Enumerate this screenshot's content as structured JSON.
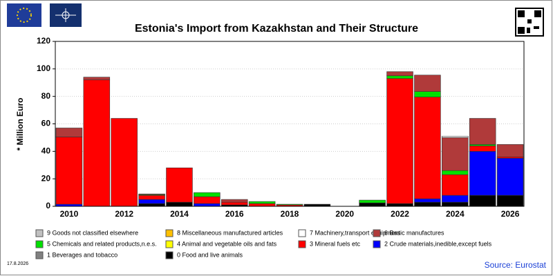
{
  "chart_data": {
    "type": "bar",
    "stacked": true,
    "title": "Estonia's Import from Kazakhstan and Their Structure",
    "y_label": "* Million Euro",
    "date": "17.8.2026",
    "source": "Source: Eurostat",
    "categories": [
      "2010",
      null,
      "2012",
      null,
      "2014",
      null,
      "2016",
      null,
      "2018",
      null,
      "2020",
      null,
      "2022",
      null,
      "2024",
      null,
      "2026"
    ],
    "ylim": [
      0,
      120
    ],
    "yticks": [
      0,
      20,
      40,
      60,
      80,
      100,
      120
    ],
    "grid": true,
    "series": [
      {
        "name": "9 Goods not classified elsewhere",
        "color": "#c0c0c0",
        "values": [
          0,
          0,
          0,
          0,
          0,
          0,
          0,
          0,
          0,
          0,
          0,
          0,
          0,
          0,
          0,
          0,
          0
        ]
      },
      {
        "name": "8 Miscellaneous manufactured articles",
        "color": "#ffc000",
        "values": [
          0,
          0,
          0,
          0,
          0,
          0,
          0,
          0,
          0,
          0,
          0,
          0,
          0,
          0,
          0,
          0,
          0
        ]
      },
      {
        "name": "7 Machinery,transport equipment",
        "color": "#ffffff",
        "values": [
          0,
          0,
          0,
          0,
          0,
          0,
          0,
          0,
          0,
          0,
          0,
          0,
          0,
          0,
          1,
          0,
          0
        ]
      },
      {
        "name": "6 Basic manufactures",
        "color": "#b03a3a",
        "values": [
          6.5,
          2,
          0,
          0.5,
          0,
          0,
          2,
          0,
          0,
          0,
          0,
          0,
          3,
          12,
          24,
          19,
          9
        ]
      },
      {
        "name": "5 Chemicals and related products,n.e.s.",
        "color": "#00e000",
        "values": [
          0,
          0,
          0,
          0.5,
          0,
          3,
          0,
          1.5,
          0.5,
          0,
          0,
          2,
          2,
          4,
          3,
          1,
          0
        ]
      },
      {
        "name": "4 Animal and vegetable oils and fats",
        "color": "#ffff00",
        "values": [
          0,
          0,
          0,
          0,
          0,
          0,
          0,
          0,
          0,
          0,
          0,
          0,
          0,
          0,
          0,
          0,
          0
        ]
      },
      {
        "name": "3 Mineral fuels etc",
        "color": "#ff0000",
        "values": [
          49,
          92,
          64,
          3,
          25,
          5,
          2,
          2,
          1,
          0,
          0,
          0,
          91,
          74,
          15,
          4,
          1
        ]
      },
      {
        "name": "2 Crude materials,inedible,except fuels",
        "color": "#0000ff",
        "values": [
          1.5,
          0,
          0,
          3,
          0,
          2,
          0,
          0,
          0,
          0,
          0,
          0,
          0,
          2.5,
          5,
          32,
          27
        ]
      },
      {
        "name": "1 Beverages and tobacco",
        "color": "#808080",
        "values": [
          0,
          0,
          0,
          0,
          0,
          0,
          0,
          0,
          0,
          0,
          0,
          0,
          0,
          0,
          0,
          0,
          0
        ]
      },
      {
        "name": "0 Food and live animals",
        "color": "#000000",
        "values": [
          0,
          0,
          0,
          2,
          3,
          0,
          1,
          0,
          0,
          1.5,
          0,
          2.5,
          2,
          3,
          3,
          8,
          8
        ]
      }
    ]
  }
}
